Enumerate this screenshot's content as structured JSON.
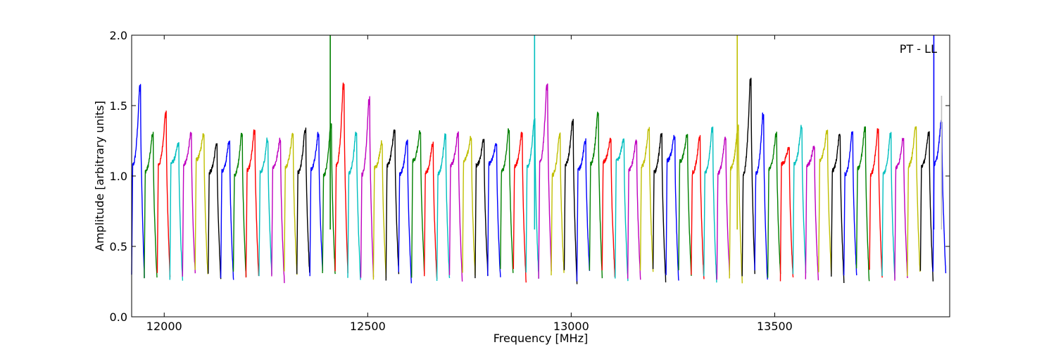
{
  "chart_data": {
    "type": "line",
    "title": "",
    "xlabel": "Frequency [MHz]",
    "ylabel": "Amplitude [arbitrary units]",
    "xlim": [
      11920,
      13930
    ],
    "ylim": [
      0.0,
      2.0
    ],
    "xticks": [
      12000,
      12500,
      13000,
      13500
    ],
    "xtick_labels": [
      "12000",
      "12500",
      "13000",
      "13500"
    ],
    "yticks": [
      0.0,
      0.5,
      1.0,
      1.5,
      2.0
    ],
    "ytick_labels": [
      "0.0",
      "0.5",
      "1.0",
      "1.5",
      "2.0"
    ],
    "grid": false,
    "annotation": "PT - LL",
    "channel_spacing_mhz": 31.25,
    "color_cycle": [
      "#0000ff",
      "#008000",
      "#ff0000",
      "#00bfbf",
      "#bf00bf",
      "#bfbf00",
      "#000000"
    ],
    "channel_peaks": [
      {
        "start": 11920,
        "peak": 1.64
      },
      {
        "start": 11951,
        "peak": 1.3
      },
      {
        "start": 11983,
        "peak": 1.45
      },
      {
        "start": 12014,
        "peak": 1.23
      },
      {
        "start": 12045,
        "peak": 1.3
      },
      {
        "start": 12076,
        "peak": 1.3
      },
      {
        "start": 12108,
        "peak": 1.23
      },
      {
        "start": 12139,
        "peak": 1.25
      },
      {
        "start": 12170,
        "peak": 1.3
      },
      {
        "start": 12201,
        "peak": 1.32
      },
      {
        "start": 12233,
        "peak": 1.26
      },
      {
        "start": 12264,
        "peak": 1.26
      },
      {
        "start": 12295,
        "peak": 1.3
      },
      {
        "start": 12326,
        "peak": 1.34
      },
      {
        "start": 12358,
        "peak": 1.3
      },
      {
        "start": 12389,
        "peak": 1.37
      },
      {
        "start": 12420,
        "peak": 1.66
      },
      {
        "start": 12451,
        "peak": 1.31
      },
      {
        "start": 12483,
        "peak": 1.55
      },
      {
        "start": 12514,
        "peak": 1.24
      },
      {
        "start": 12545,
        "peak": 1.33
      },
      {
        "start": 12576,
        "peak": 1.25
      },
      {
        "start": 12608,
        "peak": 1.31
      },
      {
        "start": 12639,
        "peak": 1.23
      },
      {
        "start": 12670,
        "peak": 1.29
      },
      {
        "start": 12701,
        "peak": 1.3
      },
      {
        "start": 12733,
        "peak": 1.27
      },
      {
        "start": 12764,
        "peak": 1.26
      },
      {
        "start": 12795,
        "peak": 1.23
      },
      {
        "start": 12826,
        "peak": 1.33
      },
      {
        "start": 12858,
        "peak": 1.3
      },
      {
        "start": 12889,
        "peak": 1.4
      },
      {
        "start": 12920,
        "peak": 1.65
      },
      {
        "start": 12951,
        "peak": 1.3
      },
      {
        "start": 12983,
        "peak": 1.39
      },
      {
        "start": 13014,
        "peak": 1.25
      },
      {
        "start": 13045,
        "peak": 1.45
      },
      {
        "start": 13076,
        "peak": 1.26
      },
      {
        "start": 13108,
        "peak": 1.26
      },
      {
        "start": 13139,
        "peak": 1.25
      },
      {
        "start": 13170,
        "peak": 1.34
      },
      {
        "start": 13201,
        "peak": 1.3
      },
      {
        "start": 13233,
        "peak": 1.28
      },
      {
        "start": 13264,
        "peak": 1.29
      },
      {
        "start": 13295,
        "peak": 1.28
      },
      {
        "start": 13326,
        "peak": 1.34
      },
      {
        "start": 13358,
        "peak": 1.27
      },
      {
        "start": 13389,
        "peak": 1.35
      },
      {
        "start": 13420,
        "peak": 1.69
      },
      {
        "start": 13451,
        "peak": 1.44
      },
      {
        "start": 13483,
        "peak": 1.3
      },
      {
        "start": 13514,
        "peak": 1.2
      },
      {
        "start": 13545,
        "peak": 1.35
      },
      {
        "start": 13576,
        "peak": 1.21
      },
      {
        "start": 13608,
        "peak": 1.32
      },
      {
        "start": 13639,
        "peak": 1.3
      },
      {
        "start": 13670,
        "peak": 1.31
      },
      {
        "start": 13701,
        "peak": 1.34
      },
      {
        "start": 13733,
        "peak": 1.33
      },
      {
        "start": 13764,
        "peak": 1.3
      },
      {
        "start": 13795,
        "peak": 1.27
      },
      {
        "start": 13826,
        "peak": 1.36
      },
      {
        "start": 13858,
        "peak": 1.31
      },
      {
        "start": 13889,
        "peak": 1.39
      }
    ],
    "spikes": [
      {
        "x": 12408,
        "y": 2.0,
        "color": "#008000"
      },
      {
        "x": 12910,
        "y": 2.0,
        "color": "#00bfbf"
      },
      {
        "x": 13408,
        "y": 2.0,
        "color": "#bfbf00"
      },
      {
        "x": 13891,
        "y": 2.0,
        "color": "#0000ff"
      },
      {
        "x": 13910,
        "y": 1.57,
        "color": "#bfbfbf"
      }
    ]
  }
}
